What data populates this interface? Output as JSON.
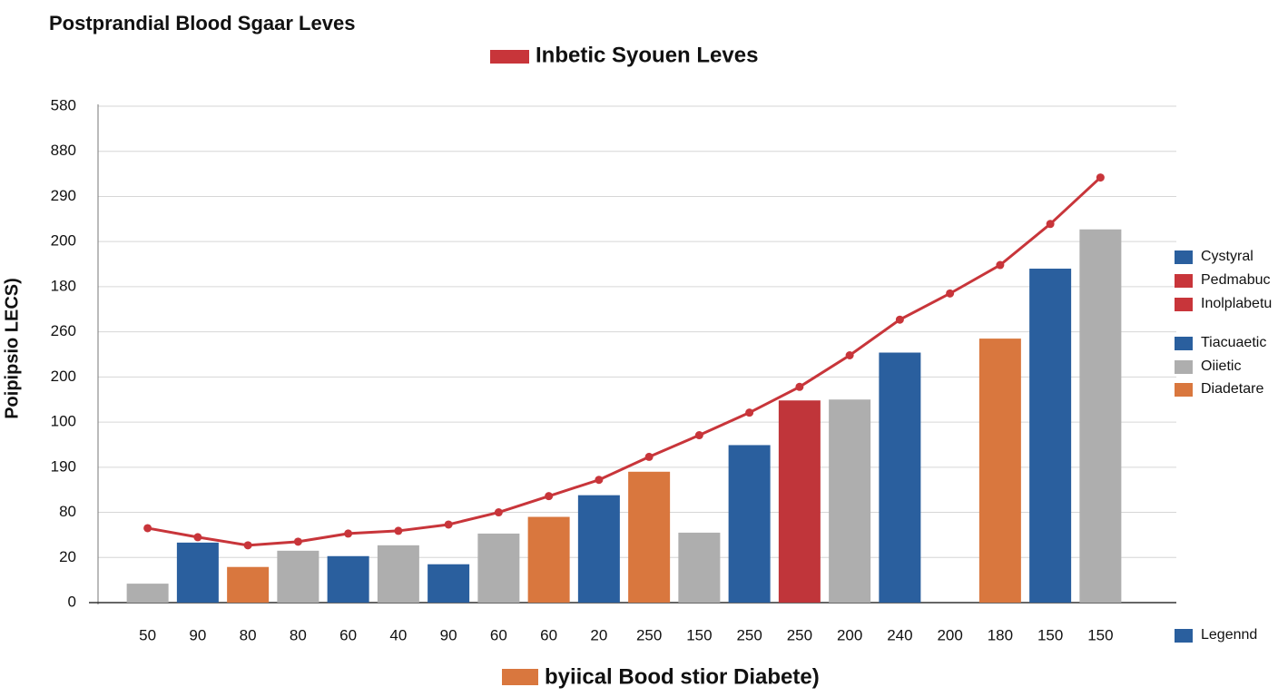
{
  "chart_data": {
    "type": "bar",
    "title": "Postprandial Blood Sgaar Leves",
    "y_label": "Poipipsio LECS)",
    "categories": [
      "50",
      "90",
      "80",
      "80",
      "60",
      "40",
      "90",
      "60",
      "60",
      "20",
      "250",
      "150",
      "250",
      "250",
      "200",
      "240",
      "200",
      "180",
      "150",
      "150"
    ],
    "series": [
      {
        "name": "byiical Bood stior Diabete)",
        "type": "bar",
        "color": "#d9773e",
        "colors": [
          "#aeaeae",
          "#2a5f9e",
          "#d9773e",
          "#aeaeae",
          "#2a5f9e",
          "#aeaeae",
          "#2a5f9e",
          "#aeaeae",
          "#d9773e",
          "#2a5f9e",
          "#d9773e",
          "#aeaeae",
          "#2a5f9e",
          "#c0353a",
          "#aeaeae",
          "#2a5f9e",
          null,
          "#d9773e",
          "#2a5f9e",
          "#aeaeae"
        ],
        "values": [
          0.42,
          1.33,
          0.79,
          1.15,
          1.03,
          1.27,
          0.85,
          1.53,
          1.9,
          2.38,
          2.9,
          1.55,
          3.49,
          4.48,
          4.5,
          5.54,
          null,
          5.85,
          7.4,
          8.27
        ]
      },
      {
        "name": "Inbetic Syouen Leves",
        "type": "line",
        "color": "#c8353a",
        "values": [
          1.65,
          1.45,
          1.27,
          1.35,
          1.53,
          1.59,
          1.73,
          2.0,
          2.36,
          2.72,
          3.23,
          3.71,
          4.21,
          4.78,
          5.48,
          6.27,
          6.85,
          7.48,
          8.39,
          9.42
        ]
      }
    ],
    "ylim": [
      0,
      11
    ],
    "yticks": [
      {
        "value": 0,
        "label": "0"
      },
      {
        "value": 1,
        "label": "20"
      },
      {
        "value": 2,
        "label": "80"
      },
      {
        "value": 3,
        "label": "190"
      },
      {
        "value": 4,
        "label": "100"
      },
      {
        "value": 5,
        "label": "200"
      },
      {
        "value": 6,
        "label": "260"
      },
      {
        "value": 7,
        "label": "180"
      },
      {
        "value": 8,
        "label": "200"
      },
      {
        "value": 9,
        "label": "290"
      },
      {
        "value": 10,
        "label": "880"
      },
      {
        "value": 11,
        "label": "580"
      }
    ],
    "grid": true,
    "legend": [
      {
        "name": "Cystyral",
        "color": "#2a5f9e"
      },
      {
        "name": "Pedmabuc",
        "color": "#c8353a"
      },
      {
        "name": "Inolplabetu",
        "color": "#c8353a"
      },
      {
        "name": "Tiacuaetic",
        "color": "#2a5f9e"
      },
      {
        "name": "Oiietic",
        "color": "#aeaeae"
      },
      {
        "name": "Diadetare",
        "color": "#d9773e"
      },
      {
        "name": "Legennd",
        "color": "#2a5f9e"
      }
    ]
  }
}
